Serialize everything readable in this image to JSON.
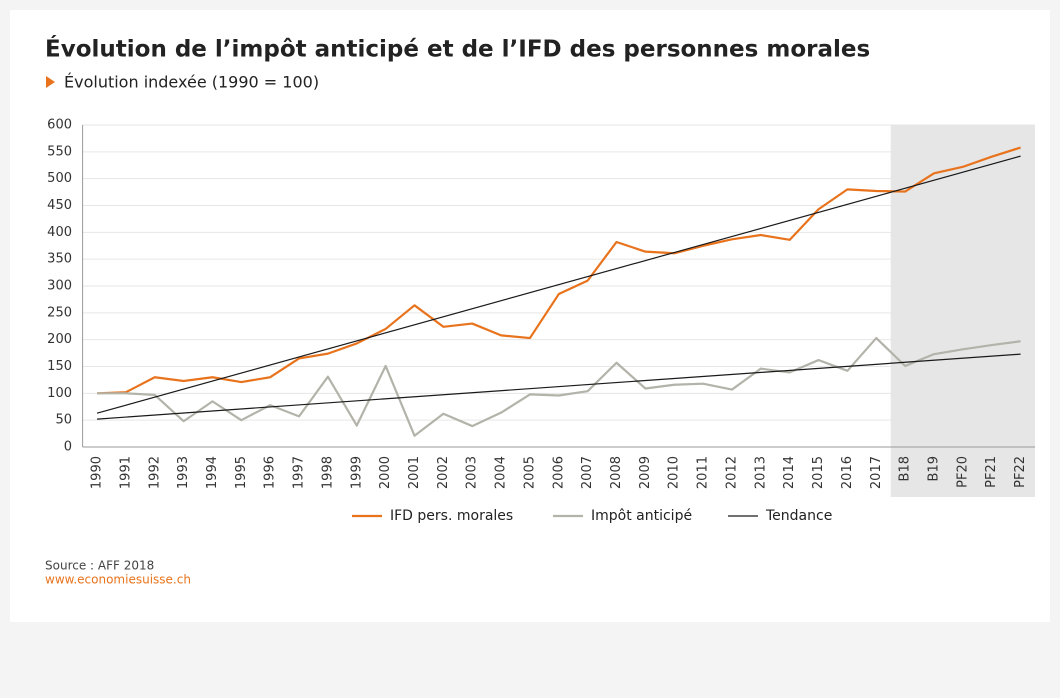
{
  "chart_data": {
    "type": "line",
    "title": "Évolution de l’impôt anticipé et de l’IFD des personnes morales",
    "subtitle": "Évolution indexée (1990 = 100)",
    "categories": [
      "1990",
      "1991",
      "1992",
      "1993",
      "1994",
      "1995",
      "1996",
      "1997",
      "1998",
      "1999",
      "2000",
      "2001",
      "2002",
      "2003",
      "2004",
      "2005",
      "2006",
      "2007",
      "2008",
      "2009",
      "2010",
      "2011",
      "2012",
      "2013",
      "2014",
      "2015",
      "2016",
      "2017",
      "B18",
      "B19",
      "PF20",
      "PF21",
      "PF22"
    ],
    "series": [
      {
        "name": "IFD pers. morales",
        "color": "#e8731c",
        "values": [
          100,
          102,
          130,
          123,
          130,
          121,
          130,
          165,
          174,
          193,
          220,
          264,
          224,
          230,
          208,
          203,
          285,
          310,
          382,
          364,
          361,
          375,
          387,
          395,
          386,
          443,
          480,
          477,
          476,
          510,
          522,
          541,
          558
        ]
      },
      {
        "name": "Impôt anticipé",
        "color": "#b3b3aa",
        "values": [
          100,
          100,
          97,
          48,
          85,
          50,
          78,
          57,
          131,
          40,
          151,
          21,
          62,
          39,
          64,
          98,
          96,
          104,
          157,
          109,
          116,
          118,
          107,
          146,
          139,
          162,
          142,
          203,
          151,
          173,
          182,
          190,
          197
        ]
      }
    ],
    "trend": {
      "name": "Tendance",
      "color": "#1a1a1a",
      "lines": [
        [
          63,
          542
        ],
        [
          52,
          173
        ]
      ]
    },
    "shade_from": "B18",
    "ylim": [
      0,
      600
    ],
    "yticks": [
      0,
      50,
      100,
      150,
      200,
      250,
      300,
      350,
      400,
      450,
      500,
      550,
      600
    ],
    "grid": true,
    "legend": "bottom",
    "source": "Source : AFF 2018",
    "website": "www.economiesuisse.ch"
  }
}
